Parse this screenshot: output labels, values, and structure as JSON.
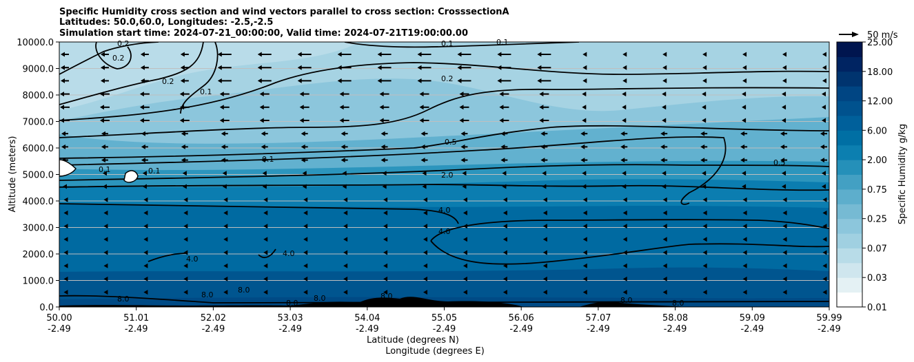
{
  "chart_data": {
    "type": "contour",
    "title_lines": [
      "Specific Humidity cross section and wind vectors parallel to cross section: CrosssectionA",
      "Latitudes: 50.0,60.0, Longitudes: -2.5,-2.5",
      "Simulation start time: 2024-07-21_00:00:00, Valid time: 2024-07-21T19:00:00.00"
    ],
    "ylabel": "Altitude (meters)",
    "xlabel_lines": [
      "Latitude (degrees N)",
      "Longitude (degrees E)"
    ],
    "ylim": [
      0,
      10000
    ],
    "xlim": [
      50.0,
      59.99
    ],
    "y_ticks": [
      "0.0",
      "1000.0",
      "2000.0",
      "3000.0",
      "4000.0",
      "5000.0",
      "6000.0",
      "7000.0",
      "8000.0",
      "9000.0",
      "10000.0"
    ],
    "y_tick_values": [
      0,
      1000,
      2000,
      3000,
      4000,
      5000,
      6000,
      7000,
      8000,
      9000,
      10000
    ],
    "x_ticks": [
      {
        "lat": "50.00",
        "lon": "-2.49"
      },
      {
        "lat": "51.01",
        "lon": "-2.49"
      },
      {
        "lat": "52.02",
        "lon": "-2.49"
      },
      {
        "lat": "53.03",
        "lon": "-2.49"
      },
      {
        "lat": "54.04",
        "lon": "-2.49"
      },
      {
        "lat": "55.05",
        "lon": "-2.49"
      },
      {
        "lat": "56.06",
        "lon": "-2.49"
      },
      {
        "lat": "57.07",
        "lon": "-2.49"
      },
      {
        "lat": "58.08",
        "lon": "-2.49"
      },
      {
        "lat": "59.09",
        "lon": "-2.49"
      },
      {
        "lat": "59.99",
        "lon": "-2.49"
      }
    ],
    "grid": "horizontal",
    "colorbar": {
      "label": "Specific Humidity g/kg",
      "tick_labels": [
        "0.01",
        "0.03",
        "0.07",
        "0.25",
        "0.75",
        "2.00",
        "6.00",
        "12.00",
        "18.00",
        "25.00"
      ],
      "colors": [
        "#ffffff",
        "#e4f1f4",
        "#cfe6ee",
        "#b8dce8",
        "#a0d0e1",
        "#8cc6dc",
        "#76bad3",
        "#5daecc",
        "#43a0c3",
        "#2590b9",
        "#0c7fb0",
        "#006fa4",
        "#00609b",
        "#00528e",
        "#004583",
        "#00346f",
        "#002462",
        "#00154f"
      ]
    },
    "quiver_key": {
      "label": "50 m/s"
    },
    "contour_labels": [
      "0.1",
      "0.1",
      "0.2",
      "0.2",
      "0.1",
      "0.2",
      "0.2",
      "0.5",
      "0.1",
      "2.0",
      "4.0",
      "4.0",
      "0.5",
      "0.1",
      "0.1",
      "4.0",
      "4.0",
      "8.0",
      "8.0",
      "8.0",
      "8.0",
      "8.0",
      "8.0",
      "8.0",
      "8.0"
    ]
  }
}
